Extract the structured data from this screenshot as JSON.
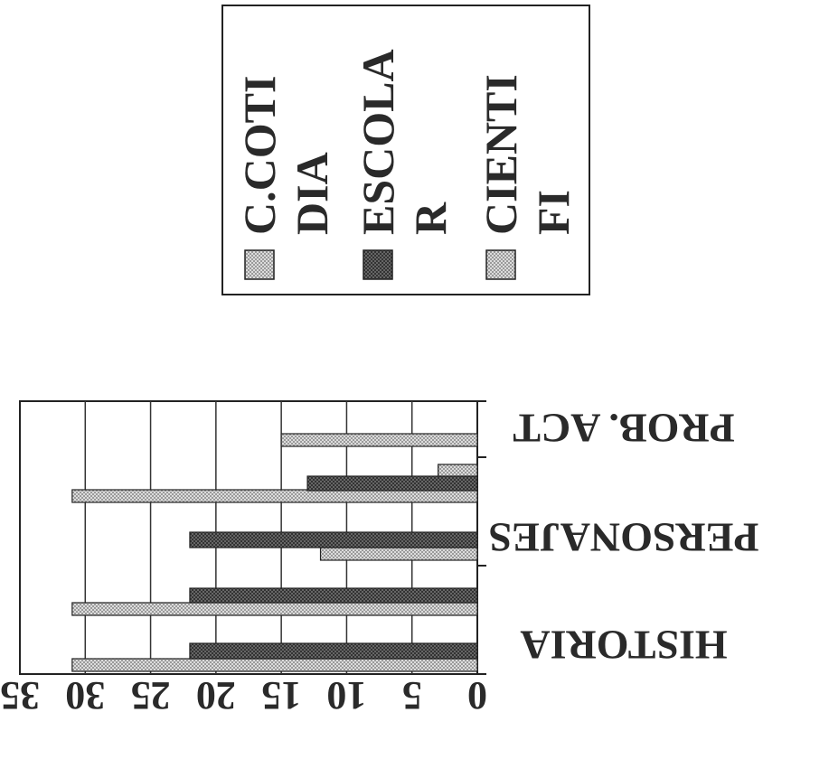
{
  "chart_data": {
    "type": "bar",
    "orientation": "horizontal",
    "categories": [
      "HISTORIA",
      "PERSONAJES",
      "PROB. ACT"
    ],
    "series": [
      {
        "name": "C.COTIDIA",
        "values": [
          31,
          31,
          12
        ]
      },
      {
        "name": "ESCOLAR",
        "values": [
          22,
          22,
          22
        ]
      },
      {
        "name": "CIENTIFI",
        "values": [
          31,
          31,
          3
        ]
      }
    ],
    "extra_bars": {
      "PROB. ACT": [
        15,
        13
      ]
    },
    "xlim": [
      0,
      35
    ],
    "xticks": [
      "0",
      "5",
      "10",
      "15",
      "20",
      "25",
      "30",
      "35"
    ],
    "grid": true,
    "legend_position": "top-right",
    "colors": {
      "C.COTIDIA": "#c8c8c8",
      "ESCOLAR": "#555555",
      "CIENTIFI": "#d6d6d6",
      "axis": "#222222",
      "grid": "#333333"
    }
  }
}
